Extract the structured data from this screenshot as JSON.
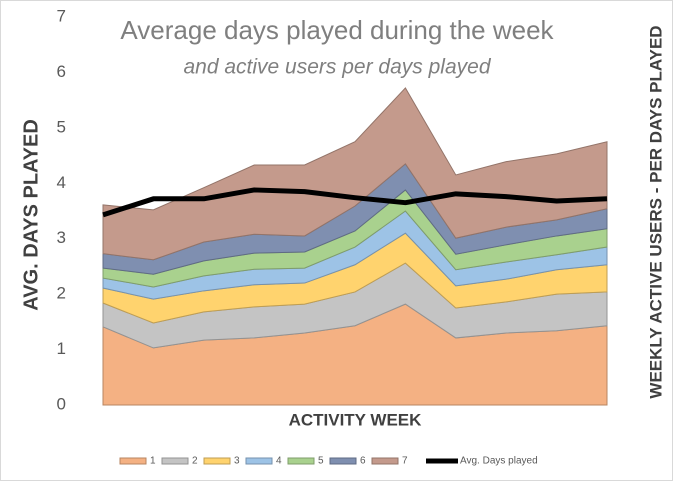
{
  "chart_data": {
    "type": "stacked-area-line",
    "title": "Average days played during the week",
    "subtitle": "and active users per days played",
    "x_label": "ACTIVITY WEEK",
    "y_label": "AVG. DAYS PLAYED",
    "y2_label": "WEEKLY ACTIVE USERS - PER DAYS PLAYED",
    "categories": [
      null,
      null,
      null,
      null,
      null,
      null,
      null,
      null,
      null,
      null,
      null
    ],
    "ylim": [
      0,
      7
    ],
    "yticks": [
      0,
      1,
      2,
      3,
      4,
      5,
      6,
      7
    ],
    "y2lim": [
      0,
      7
    ],
    "series": [
      {
        "name": "1",
        "color": "#f4b183",
        "axis": "y2",
        "values": [
          1.41,
          1.03,
          1.17,
          1.21,
          1.3,
          1.43,
          1.82,
          1.21,
          1.3,
          1.34,
          1.43
        ]
      },
      {
        "name": "2",
        "color": "#c4c4c4",
        "axis": "y2",
        "values": [
          0.43,
          0.45,
          0.51,
          0.56,
          0.52,
          0.61,
          0.74,
          0.54,
          0.56,
          0.66,
          0.61
        ]
      },
      {
        "name": "3",
        "color": "#ffd36e",
        "axis": "y2",
        "values": [
          0.27,
          0.43,
          0.38,
          0.4,
          0.38,
          0.49,
          0.54,
          0.4,
          0.41,
          0.44,
          0.49
        ]
      },
      {
        "name": "4",
        "color": "#9dc3e6",
        "axis": "y2",
        "values": [
          0.18,
          0.22,
          0.27,
          0.28,
          0.27,
          0.32,
          0.4,
          0.29,
          0.31,
          0.27,
          0.32
        ]
      },
      {
        "name": "5",
        "color": "#a9d18e",
        "axis": "y2",
        "values": [
          0.18,
          0.23,
          0.27,
          0.29,
          0.29,
          0.29,
          0.38,
          0.28,
          0.31,
          0.34,
          0.33
        ]
      },
      {
        "name": "6",
        "color": "#7f8fb0",
        "axis": "y2",
        "values": [
          0.26,
          0.26,
          0.34,
          0.34,
          0.29,
          0.45,
          0.47,
          0.29,
          0.32,
          0.29,
          0.36
        ]
      },
      {
        "name": "7",
        "color": "#c49a8c",
        "axis": "y2",
        "values": [
          0.88,
          0.9,
          0.98,
          1.25,
          1.28,
          1.16,
          1.37,
          1.14,
          1.18,
          1.19,
          1.21
        ]
      },
      {
        "name": "Avg. Days played",
        "color": "#000000",
        "axis": "y",
        "values": [
          3.43,
          3.72,
          3.72,
          3.88,
          3.85,
          3.74,
          3.65,
          3.81,
          3.76,
          3.68,
          3.72
        ]
      }
    ]
  }
}
